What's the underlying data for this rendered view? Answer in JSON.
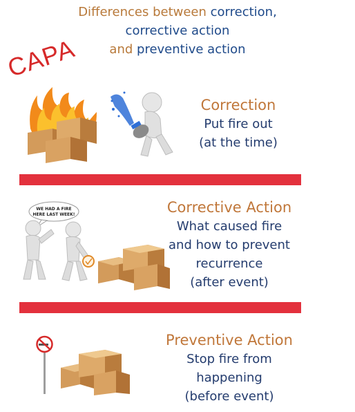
{
  "header": {
    "line1_prefix": "Differences between ",
    "line1_highlight": "correction,",
    "line2": "corrective action",
    "line3_prefix": "and ",
    "line3_highlight": "preventive action"
  },
  "stamp": {
    "text": "CAPA"
  },
  "sections": [
    {
      "title": "Correction",
      "lines": [
        "Put fire out",
        "(at the time)"
      ]
    },
    {
      "title": "Corrective Action",
      "lines": [
        "What caused fire",
        "and how to prevent",
        "recurrence",
        "(after event)"
      ]
    },
    {
      "title": "Preventive Action",
      "lines": [
        "Stop fire from",
        "happening",
        "(before event)"
      ]
    }
  ],
  "speech_bubble": {
    "line1": "WE HAD A FIRE",
    "line2": "HERE LAST WEEK!"
  },
  "colors": {
    "accent_red": "#e3313d",
    "title_brown": "#c0773a",
    "text_blue": "#243c6e",
    "stamp_red": "#d62a2a"
  },
  "icons": [
    "burning-boxes-icon",
    "figure-with-extinguisher-icon",
    "two-figures-talking-icon",
    "cardboard-boxes-icon",
    "no-smoking-sign-icon"
  ]
}
